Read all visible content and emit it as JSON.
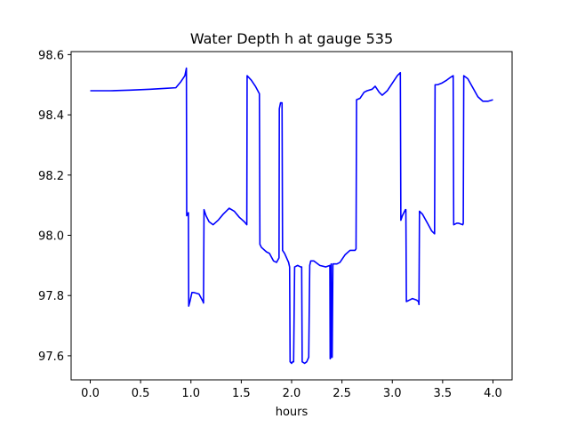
{
  "chart_data": {
    "type": "line",
    "title": "Water Depth h at gauge 535",
    "xlabel": "hours",
    "ylabel": "",
    "xlim": [
      -0.19,
      4.19
    ],
    "ylim": [
      97.52,
      98.61
    ],
    "xticks": [
      0.0,
      0.5,
      1.0,
      1.5,
      2.0,
      2.5,
      3.0,
      3.5,
      4.0
    ],
    "xtick_labels": [
      "0.0",
      "0.5",
      "1.0",
      "1.5",
      "2.0",
      "2.5",
      "3.0",
      "3.5",
      "4.0"
    ],
    "yticks": [
      97.6,
      97.8,
      98.0,
      98.2,
      98.4,
      98.6
    ],
    "ytick_labels": [
      "97.6",
      "97.8",
      "98.0",
      "98.2",
      "98.4",
      "98.6"
    ],
    "grid": false,
    "legend": "none",
    "series": [
      {
        "color": "#0000ff",
        "x": [
          0.0,
          0.2,
          0.4,
          0.6,
          0.75,
          0.85,
          0.9,
          0.94,
          0.955,
          0.958,
          0.965,
          0.975,
          0.978,
          0.99,
          1.01,
          1.03,
          1.08,
          1.12,
          1.125,
          1.13,
          1.15,
          1.18,
          1.22,
          1.27,
          1.32,
          1.38,
          1.43,
          1.48,
          1.53,
          1.555,
          1.558,
          1.6,
          1.64,
          1.68,
          1.685,
          1.7,
          1.75,
          1.78,
          1.82,
          1.85,
          1.875,
          1.878,
          1.89,
          1.905,
          1.91,
          1.93,
          1.97,
          1.98,
          1.985,
          2.0,
          2.01,
          2.02,
          2.03,
          2.06,
          2.09,
          2.1,
          2.105,
          2.13,
          2.15,
          2.17,
          2.18,
          2.19,
          2.22,
          2.28,
          2.34,
          2.38,
          2.383,
          2.39,
          2.393,
          2.4,
          2.403,
          2.41,
          2.45,
          2.48,
          2.53,
          2.58,
          2.63,
          2.64,
          2.645,
          2.68,
          2.72,
          2.75,
          2.8,
          2.83,
          2.87,
          2.9,
          2.95,
          3.0,
          3.05,
          3.08,
          3.085,
          3.1,
          3.13,
          3.135,
          3.14,
          3.17,
          3.2,
          3.24,
          3.26,
          3.265,
          3.27,
          3.3,
          3.35,
          3.39,
          3.42,
          3.425,
          3.45,
          3.49,
          3.54,
          3.58,
          3.605,
          3.61,
          3.64,
          3.66,
          3.7,
          3.705,
          3.71,
          3.75,
          3.8,
          3.85,
          3.9,
          3.95,
          4.0
        ],
        "y": [
          98.48,
          98.48,
          98.482,
          98.485,
          98.488,
          98.49,
          98.51,
          98.53,
          98.555,
          98.065,
          98.07,
          98.075,
          97.765,
          97.78,
          97.81,
          97.81,
          97.805,
          97.78,
          97.775,
          98.085,
          98.065,
          98.045,
          98.035,
          98.05,
          98.07,
          98.09,
          98.08,
          98.06,
          98.045,
          98.035,
          98.53,
          98.515,
          98.495,
          98.47,
          97.97,
          97.96,
          97.945,
          97.94,
          97.915,
          97.91,
          97.925,
          98.42,
          98.44,
          98.44,
          97.95,
          97.94,
          97.91,
          97.895,
          97.58,
          97.575,
          97.58,
          97.58,
          97.895,
          97.9,
          97.895,
          97.895,
          97.58,
          97.575,
          97.58,
          97.595,
          97.9,
          97.915,
          97.915,
          97.9,
          97.895,
          97.9,
          97.59,
          97.595,
          97.905,
          97.595,
          97.595,
          97.905,
          97.905,
          97.91,
          97.935,
          97.95,
          97.95,
          97.955,
          98.45,
          98.455,
          98.475,
          98.48,
          98.485,
          98.495,
          98.475,
          98.465,
          98.48,
          98.505,
          98.53,
          98.54,
          98.05,
          98.065,
          98.085,
          98.085,
          97.78,
          97.785,
          97.79,
          97.785,
          97.78,
          97.77,
          98.08,
          98.07,
          98.04,
          98.015,
          98.005,
          98.5,
          98.5,
          98.505,
          98.515,
          98.525,
          98.53,
          98.035,
          98.04,
          98.04,
          98.035,
          98.04,
          98.53,
          98.52,
          98.49,
          98.46,
          98.445,
          98.445,
          98.45
        ]
      }
    ]
  }
}
